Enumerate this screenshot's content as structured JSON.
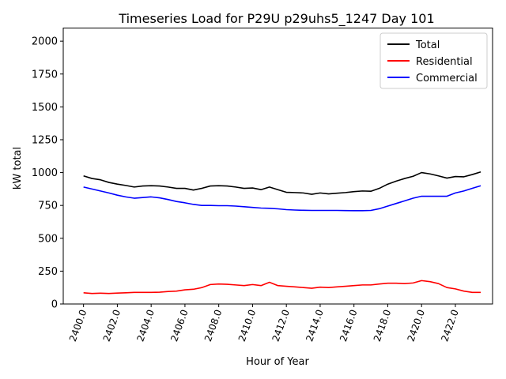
{
  "chart_data": {
    "type": "line",
    "title": "Timeseries Load for P29U p29uhs5_1247  Day 101",
    "xlabel": "Hour of Year",
    "ylabel": "kW total",
    "xlim": [
      2398.8,
      2424.2
    ],
    "ylim": [
      0,
      2100
    ],
    "xticks": [
      2400,
      2402,
      2404,
      2406,
      2408,
      2410,
      2412,
      2414,
      2416,
      2418,
      2420,
      2422
    ],
    "xtick_labels": [
      "2400.0",
      "2402.0",
      "2404.0",
      "2406.0",
      "2408.0",
      "2410.0",
      "2412.0",
      "2414.0",
      "2416.0",
      "2418.0",
      "2420.0",
      "2422.0"
    ],
    "yticks": [
      0,
      250,
      500,
      750,
      1000,
      1250,
      1500,
      1750,
      2000
    ],
    "ytick_labels": [
      "0",
      "250",
      "500",
      "750",
      "1000",
      "1250",
      "1500",
      "1750",
      "2000"
    ],
    "grid": false,
    "legend_position": "top-right",
    "x": [
      2400.0,
      2400.5,
      2401.0,
      2401.5,
      2402.0,
      2402.5,
      2403.0,
      2403.5,
      2404.0,
      2404.5,
      2405.0,
      2405.5,
      2406.0,
      2406.5,
      2407.0,
      2407.5,
      2408.0,
      2408.5,
      2409.0,
      2409.5,
      2410.0,
      2410.5,
      2411.0,
      2411.5,
      2412.0,
      2412.5,
      2413.0,
      2413.5,
      2414.0,
      2414.5,
      2415.0,
      2415.5,
      2416.0,
      2416.5,
      2417.0,
      2417.5,
      2418.0,
      2418.5,
      2419.0,
      2419.5,
      2420.0,
      2420.5,
      2421.0,
      2421.5,
      2422.0,
      2422.5,
      2423.0,
      2423.5
    ],
    "series": [
      {
        "name": "Total",
        "color": "#000000",
        "values": [
          975,
          955,
          945,
          925,
          912,
          902,
          890,
          898,
          900,
          898,
          890,
          880,
          880,
          867,
          880,
          898,
          900,
          898,
          890,
          880,
          883,
          870,
          890,
          870,
          850,
          848,
          845,
          835,
          845,
          838,
          843,
          848,
          855,
          860,
          858,
          880,
          912,
          935,
          955,
          972,
          1000,
          990,
          975,
          958,
          970,
          968,
          985,
          1005
        ]
      },
      {
        "name": "Residential",
        "color": "#ff0000",
        "values": [
          85,
          80,
          82,
          80,
          83,
          85,
          88,
          88,
          88,
          90,
          95,
          98,
          108,
          112,
          125,
          148,
          152,
          150,
          145,
          140,
          148,
          140,
          165,
          140,
          135,
          130,
          125,
          120,
          128,
          125,
          130,
          135,
          140,
          145,
          145,
          152,
          158,
          158,
          155,
          160,
          178,
          170,
          155,
          125,
          115,
          98,
          88,
          88
        ]
      },
      {
        "name": "Commercial",
        "color": "#0000ff",
        "values": [
          890,
          875,
          860,
          845,
          828,
          815,
          805,
          810,
          815,
          808,
          795,
          780,
          770,
          758,
          750,
          750,
          748,
          748,
          745,
          740,
          735,
          730,
          728,
          724,
          718,
          715,
          713,
          712,
          712,
          712,
          712,
          711,
          710,
          710,
          712,
          725,
          745,
          765,
          785,
          805,
          820,
          820,
          820,
          820,
          845,
          860,
          880,
          900
        ]
      }
    ]
  }
}
